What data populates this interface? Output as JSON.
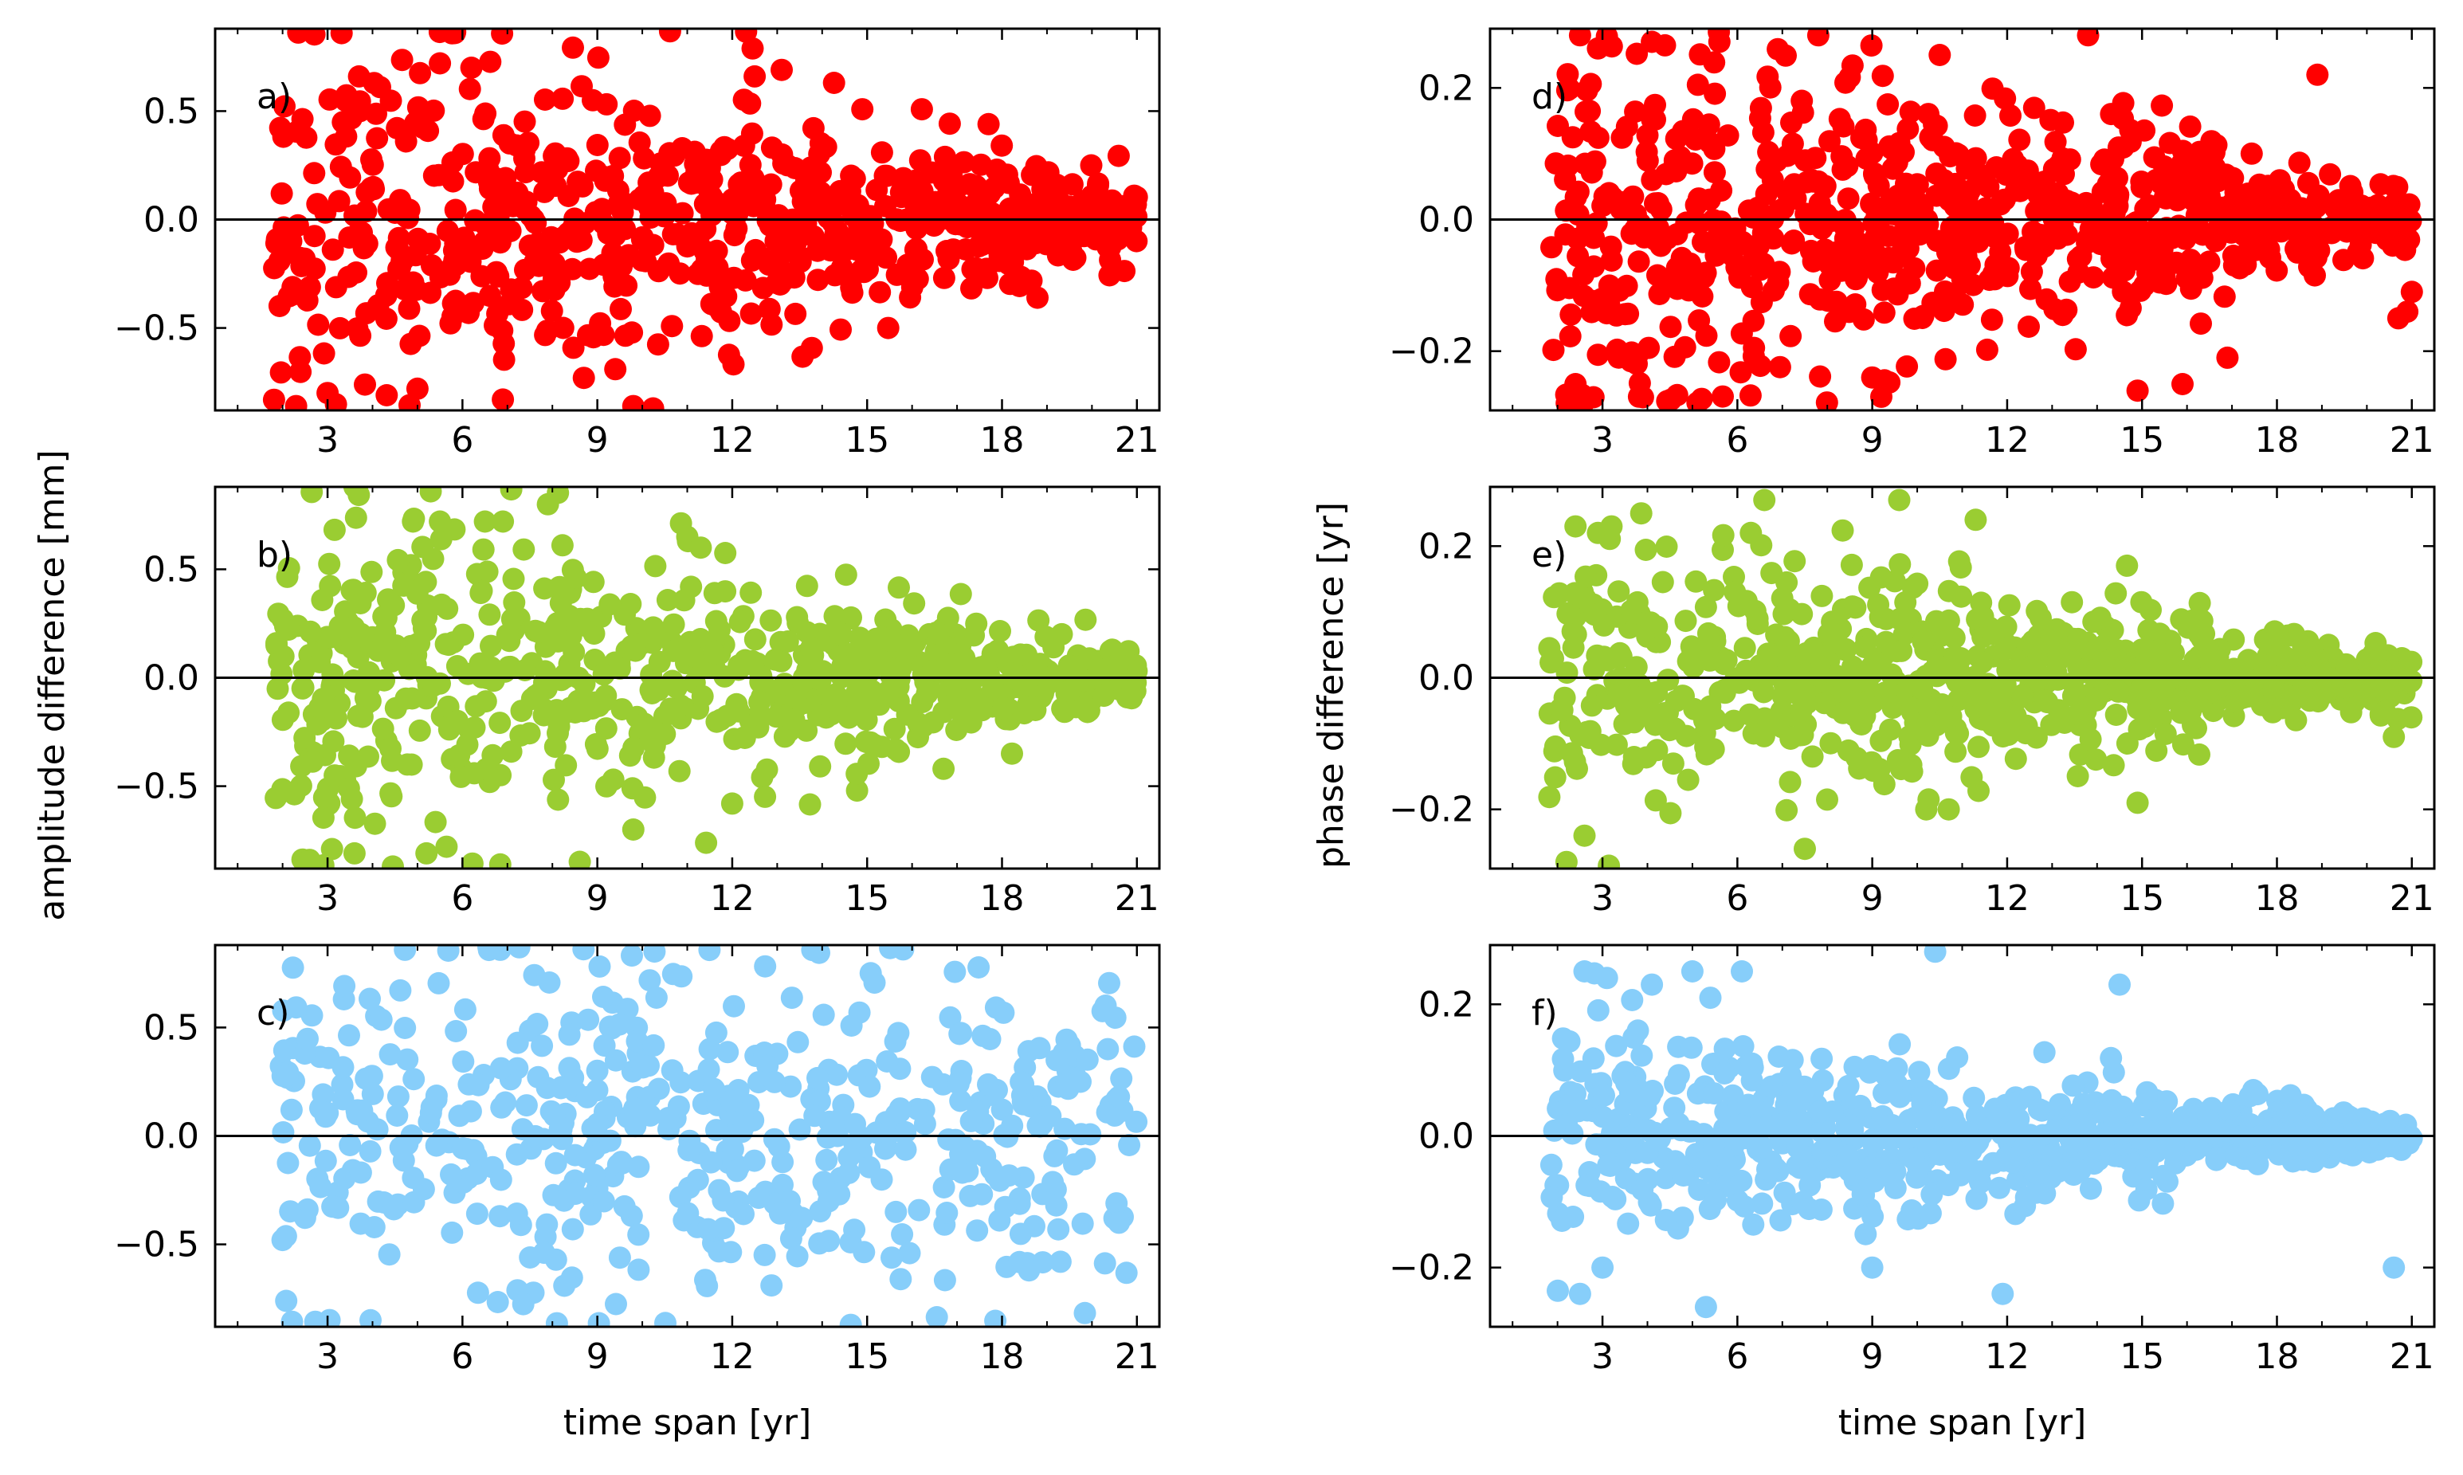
{
  "figure": {
    "ylabel_left": "amplitude difference [mm]",
    "ylabel_right": "phase difference [yr]"
  },
  "colors": {
    "red": "#ff0000",
    "green": "#9acd32",
    "blue": "#87cefa",
    "axis": "#000000"
  },
  "chart_data": [
    {
      "panel": "a)",
      "type": "scatter",
      "column": "left",
      "row": 0,
      "color": "#ff0000",
      "xlabel": "",
      "ylabel": "amplitude difference [mm]",
      "xlim": [
        0.5,
        21.5
      ],
      "ylim": [
        -0.88,
        0.88
      ],
      "xticks": [
        3,
        6,
        9,
        12,
        15,
        18,
        21
      ],
      "xtick_labels": [
        "3",
        "6",
        "9",
        "12",
        "15",
        "18",
        "21"
      ],
      "yticks": [
        -0.5,
        0.0,
        0.5
      ],
      "ytick_labels": [
        "−0.5",
        "0.0",
        "0.5"
      ],
      "hline": 0.0,
      "spread_at_start": 0.5,
      "spread_at_end": 0.1,
      "jitter": 0.4,
      "outliers": [
        [
          5.5,
          0.72
        ],
        [
          6.2,
          0.7
        ],
        [
          12.5,
          0.66
        ],
        [
          13.1,
          0.69
        ],
        [
          17.7,
          0.44
        ],
        [
          3.7,
          0.66
        ],
        [
          8.9,
          0.55
        ],
        [
          2.3,
          -0.86
        ],
        [
          3.0,
          -0.8
        ],
        [
          9.8,
          -0.86
        ],
        [
          6.9,
          -0.83
        ],
        [
          5.0,
          -0.78
        ],
        [
          8.7,
          -0.73
        ],
        [
          9.4,
          -0.69
        ]
      ],
      "n_points": 720,
      "seed": 11
    },
    {
      "panel": "b)",
      "type": "scatter",
      "column": "left",
      "row": 1,
      "color": "#9acd32",
      "xlabel": "",
      "ylabel": "amplitude difference [mm]",
      "xlim": [
        0.5,
        21.5
      ],
      "ylim": [
        -0.88,
        0.88
      ],
      "xticks": [
        3,
        6,
        9,
        12,
        15,
        18,
        21
      ],
      "xtick_labels": [
        "3",
        "6",
        "9",
        "12",
        "15",
        "18",
        "21"
      ],
      "yticks": [
        -0.5,
        0.0,
        0.5
      ],
      "ytick_labels": [
        "−0.5",
        "0.0",
        "0.5"
      ],
      "hline": 0.0,
      "spread_at_start": 0.5,
      "spread_at_end": 0.06,
      "jitter": 0.35,
      "outliers": [
        [
          3.6,
          0.88
        ],
        [
          4.9,
          0.72
        ],
        [
          5.5,
          0.72
        ],
        [
          6.5,
          0.72
        ],
        [
          6.9,
          0.72
        ],
        [
          7.9,
          0.8
        ],
        [
          11.0,
          0.65
        ],
        [
          11.3,
          0.6
        ],
        [
          2.6,
          -0.84
        ],
        [
          3.1,
          -0.79
        ],
        [
          3.6,
          -0.81
        ],
        [
          5.2,
          -0.81
        ],
        [
          9.8,
          -0.7
        ],
        [
          12.0,
          -0.58
        ],
        [
          16.7,
          -0.42
        ]
      ],
      "n_points": 720,
      "seed": 23
    },
    {
      "panel": "c)",
      "type": "scatter",
      "column": "left",
      "row": 2,
      "color": "#87cefa",
      "xlabel": "time span [yr]",
      "ylabel": "amplitude difference [mm]",
      "xlim": [
        0.5,
        21.5
      ],
      "ylim": [
        -0.88,
        0.88
      ],
      "xticks": [
        3,
        6,
        9,
        12,
        15,
        18,
        21
      ],
      "xtick_labels": [
        "3",
        "6",
        "9",
        "12",
        "15",
        "18",
        "21"
      ],
      "yticks": [
        -0.5,
        0.0,
        0.5
      ],
      "ytick_labels": [
        "−0.5",
        "0.0",
        "0.5"
      ],
      "hline": 0.0,
      "spread_at_start": 0.55,
      "spread_at_end": 0.35,
      "jitter": 0.45,
      "outliers": [
        [
          2.0,
          -0.48
        ],
        [
          2.1,
          0.28
        ],
        [
          2.2,
          0.12
        ],
        [
          20.6,
          -0.4
        ],
        [
          20.6,
          0.18
        ],
        [
          18.6,
          -0.62
        ],
        [
          19.3,
          -0.58
        ],
        [
          15.8,
          0.86
        ]
      ],
      "n_points": 520,
      "seed": 37
    },
    {
      "panel": "d)",
      "type": "scatter",
      "column": "right",
      "row": 0,
      "color": "#ff0000",
      "xlabel": "",
      "ylabel": "phase difference [yr]",
      "xlim": [
        0.5,
        21.5
      ],
      "ylim": [
        -0.29,
        0.29
      ],
      "xticks": [
        3,
        6,
        9,
        12,
        15,
        18,
        21
      ],
      "xtick_labels": [
        "3",
        "6",
        "9",
        "12",
        "15",
        "18",
        "21"
      ],
      "yticks": [
        -0.2,
        0.0,
        0.2
      ],
      "ytick_labels": [
        "−0.2",
        "0.0",
        "0.2"
      ],
      "hline": 0.0,
      "spread_at_start": 0.2,
      "spread_at_end": 0.02,
      "jitter": 0.3,
      "outliers": [
        [
          2.5,
          0.28
        ],
        [
          2.9,
          0.26
        ],
        [
          4.1,
          0.27
        ],
        [
          5.6,
          0.27
        ],
        [
          7.8,
          0.28
        ],
        [
          13.8,
          0.28
        ],
        [
          18.9,
          0.22
        ],
        [
          10.5,
          0.25
        ],
        [
          2.4,
          -0.25
        ],
        [
          2.8,
          -0.27
        ],
        [
          3.9,
          -0.27
        ],
        [
          9.0,
          -0.24
        ],
        [
          14.9,
          -0.26
        ],
        [
          15.9,
          -0.25
        ],
        [
          16.9,
          -0.21
        ],
        [
          20.7,
          -0.15
        ],
        [
          20.9,
          -0.14
        ],
        [
          21.0,
          -0.11
        ]
      ],
      "n_points": 780,
      "seed": 53
    },
    {
      "panel": "e)",
      "type": "scatter",
      "column": "right",
      "row": 1,
      "color": "#9acd32",
      "xlabel": "",
      "ylabel": "phase difference [yr]",
      "xlim": [
        0.5,
        21.5
      ],
      "ylim": [
        -0.29,
        0.29
      ],
      "xticks": [
        3,
        6,
        9,
        12,
        15,
        18,
        21
      ],
      "xtick_labels": [
        "3",
        "6",
        "9",
        "12",
        "15",
        "18",
        "21"
      ],
      "yticks": [
        -0.2,
        0.0,
        0.2
      ],
      "ytick_labels": [
        "−0.2",
        "0.0",
        "0.2"
      ],
      "hline": 0.0,
      "spread_at_start": 0.12,
      "spread_at_end": 0.02,
      "jitter": 0.28,
      "outliers": [
        [
          2.4,
          0.23
        ],
        [
          2.9,
          0.22
        ],
        [
          3.2,
          0.23
        ],
        [
          6.6,
          0.27
        ],
        [
          9.6,
          0.27
        ],
        [
          11.3,
          0.24
        ],
        [
          6.3,
          0.22
        ],
        [
          2.2,
          -0.28
        ],
        [
          2.6,
          -0.24
        ],
        [
          7.5,
          -0.26
        ],
        [
          10.2,
          -0.2
        ],
        [
          10.7,
          -0.2
        ],
        [
          14.9,
          -0.19
        ],
        [
          20.6,
          -0.09
        ]
      ],
      "n_points": 780,
      "seed": 71
    },
    {
      "panel": "f)",
      "type": "scatter",
      "column": "right",
      "row": 2,
      "color": "#87cefa",
      "xlabel": "time span [yr]",
      "ylabel": "phase difference [yr]",
      "xlim": [
        0.5,
        21.5
      ],
      "ylim": [
        -0.29,
        0.29
      ],
      "xticks": [
        3,
        6,
        9,
        12,
        15,
        18,
        21
      ],
      "xtick_labels": [
        "3",
        "6",
        "9",
        "12",
        "15",
        "18",
        "21"
      ],
      "yticks": [
        -0.2,
        0.0,
        0.2
      ],
      "ytick_labels": [
        "−0.2",
        "0.0",
        "0.2"
      ],
      "hline": 0.0,
      "spread_at_start": 0.1,
      "spread_at_end": 0.01,
      "jitter": 0.28,
      "outliers": [
        [
          2.6,
          0.25
        ],
        [
          3.1,
          0.24
        ],
        [
          4.1,
          0.23
        ],
        [
          5.0,
          0.25
        ],
        [
          5.4,
          0.21
        ],
        [
          6.1,
          0.25
        ],
        [
          10.4,
          0.28
        ],
        [
          14.5,
          0.23
        ],
        [
          2.5,
          -0.24
        ],
        [
          3.0,
          -0.2
        ],
        [
          5.3,
          -0.26
        ],
        [
          9.0,
          -0.2
        ],
        [
          11.9,
          -0.24
        ],
        [
          20.6,
          -0.2
        ]
      ],
      "n_points": 800,
      "seed": 97
    }
  ]
}
